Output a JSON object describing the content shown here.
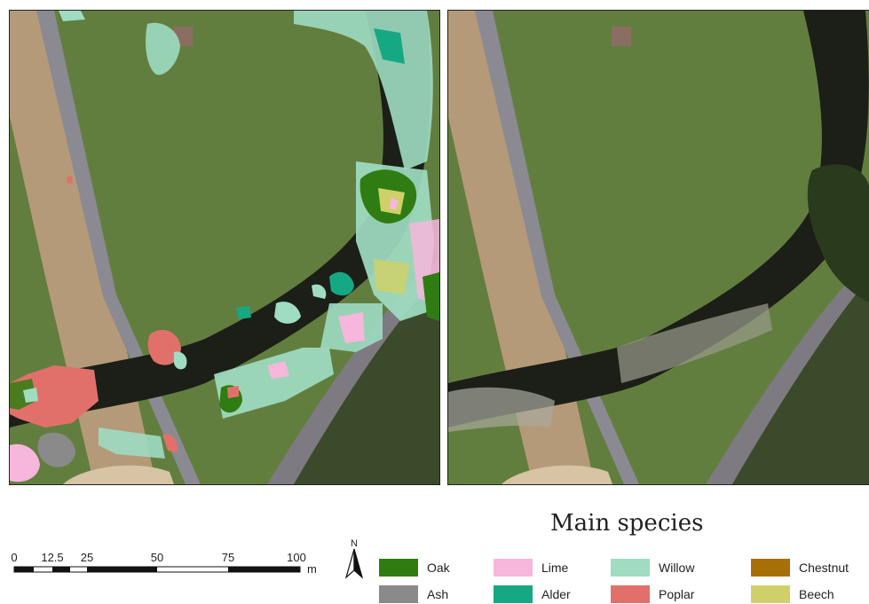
{
  "legend": {
    "title": "Main species",
    "items": [
      {
        "label": "Oak",
        "color": "#2f7d12"
      },
      {
        "label": "Lime",
        "color": "#f7b6dc"
      },
      {
        "label": "Willow",
        "color": "#9fdcc2"
      },
      {
        "label": "Chestnut",
        "color": "#a86f08"
      },
      {
        "label": "Ash",
        "color": "#8a8a8a"
      },
      {
        "label": "Alder",
        "color": "#16a882"
      },
      {
        "label": "Poplar",
        "color": "#e2706a"
      },
      {
        "label": "Beech",
        "color": "#cfd06a"
      }
    ]
  },
  "scale": {
    "ticks": [
      "0",
      "12.5",
      "25",
      "50",
      "75",
      "100"
    ],
    "unit": "m"
  },
  "north": {
    "label": "N"
  }
}
